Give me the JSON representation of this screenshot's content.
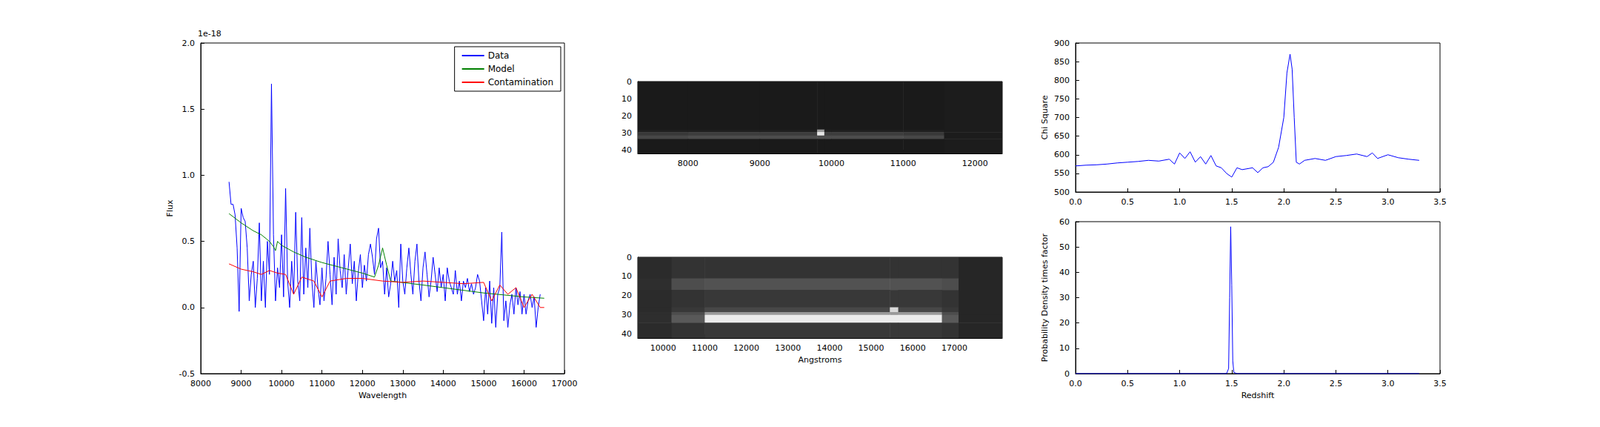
{
  "chart_data": [
    {
      "type": "line",
      "xlabel": "Wavelength",
      "ylabel": "Flux",
      "y_scale_label": "1e-18",
      "xlim": [
        8000,
        17000
      ],
      "xticks": [
        8000,
        9000,
        10000,
        11000,
        12000,
        13000,
        14000,
        15000,
        16000,
        17000
      ],
      "ylim": [
        -0.5,
        2.0
      ],
      "yticks": [
        -0.5,
        {
          "value": 0,
          "label": "0.0"
        },
        0.5,
        {
          "value": 1,
          "label": "1.0"
        },
        1.5,
        {
          "value": 2,
          "label": "2.0"
        }
      ],
      "legend": "upper right",
      "grid": false,
      "series": [
        {
          "name": "Data",
          "color": "#0000ff",
          "x": [
            8700,
            8750,
            8800,
            8850,
            8900,
            8950,
            9000,
            9050,
            9100,
            9150,
            9200,
            9250,
            9300,
            9350,
            9400,
            9450,
            9500,
            9550,
            9600,
            9650,
            9700,
            9750,
            9800,
            9850,
            9900,
            9950,
            10000,
            10050,
            10100,
            10150,
            10200,
            10250,
            10300,
            10350,
            10400,
            10450,
            10500,
            10550,
            10600,
            10650,
            10700,
            10750,
            10800,
            10850,
            10900,
            10950,
            11000,
            11050,
            11100,
            11150,
            11200,
            11250,
            11300,
            11350,
            11400,
            11450,
            11500,
            11550,
            11600,
            11650,
            11700,
            11750,
            11800,
            11850,
            11900,
            11950,
            12000,
            12050,
            12100,
            12150,
            12200,
            12250,
            12300,
            12350,
            12400,
            12450,
            12500,
            12550,
            12600,
            12650,
            12700,
            12750,
            12800,
            12850,
            12900,
            12950,
            13000,
            13050,
            13100,
            13150,
            13200,
            13250,
            13300,
            13350,
            13400,
            13450,
            13500,
            13550,
            13600,
            13650,
            13700,
            13750,
            13800,
            13850,
            13900,
            13950,
            14000,
            14050,
            14100,
            14150,
            14200,
            14250,
            14300,
            14350,
            14400,
            14450,
            14500,
            14550,
            14600,
            14650,
            14700,
            14750,
            14800,
            14850,
            14900,
            14950,
            15000,
            15050,
            15100,
            15150,
            15200,
            15250,
            15300,
            15350,
            15400,
            15450,
            15500,
            15550,
            15600,
            15650,
            15700,
            15750,
            15800,
            15850,
            15900,
            15950,
            16000,
            16050,
            16100,
            16150,
            16200,
            16250,
            16300,
            16350,
            16400
          ],
          "values": [
            0.95,
            0.78,
            0.78,
            0.7,
            0.45,
            -0.03,
            0.75,
            0.68,
            0.65,
            0.45,
            0.05,
            0.25,
            0.35,
            0.0,
            0.22,
            0.64,
            0.05,
            0.35,
            0.0,
            0.5,
            0.25,
            1.69,
            0.55,
            0.05,
            0.3,
            0.15,
            0.55,
            0.08,
            0.9,
            0.2,
            0.0,
            0.35,
            0.1,
            0.72,
            0.2,
            0.05,
            0.68,
            0.1,
            0.45,
            0.15,
            0.6,
            0.2,
            0.0,
            0.35,
            0.15,
            0.02,
            0.3,
            0.05,
            0.22,
            0.5,
            0.25,
            0.02,
            0.38,
            0.1,
            0.52,
            0.28,
            0.15,
            0.4,
            0.1,
            0.3,
            0.48,
            0.18,
            0.35,
            0.05,
            0.27,
            0.4,
            0.15,
            0.32,
            0.2,
            0.4,
            0.48,
            0.38,
            0.25,
            0.52,
            0.6,
            0.3,
            0.35,
            0.1,
            0.3,
            0.08,
            0.18,
            0.35,
            0.2,
            0.28,
            0.0,
            0.48,
            0.2,
            0.1,
            0.3,
            0.45,
            0.25,
            0.1,
            0.35,
            0.48,
            0.2,
            0.05,
            0.3,
            0.42,
            0.25,
            0.08,
            0.2,
            0.38,
            0.25,
            0.12,
            0.3,
            0.15,
            0.25,
            0.05,
            0.3,
            0.2,
            0.15,
            0.1,
            0.28,
            0.1,
            0.2,
            0.05,
            0.2,
            0.15,
            0.22,
            0.12,
            0.18,
            0.1,
            0.15,
            0.25,
            0.2,
            0.05,
            -0.1,
            0.15,
            -0.05,
            0.2,
            -0.12,
            0.15,
            -0.15,
            0.1,
            0.15,
            0.57,
            -0.1,
            0.05,
            -0.15,
            0.02,
            0.1,
            -0.05,
            0.15,
            0.02,
            0.12,
            -0.05,
            0.1,
            -0.05,
            0.05,
            0.1,
            0.0,
            0.08,
            -0.15,
            0.0,
            0.1
          ]
        },
        {
          "name": "Model",
          "color": "#008000",
          "x": [
            8700,
            9000,
            9300,
            9500,
            9700,
            9800,
            9850,
            9900,
            10000,
            10300,
            10600,
            11000,
            11500,
            12000,
            12300,
            12400,
            12500,
            12600,
            12700,
            13500,
            14000,
            15000,
            16000,
            16500
          ],
          "values": [
            0.71,
            0.64,
            0.58,
            0.55,
            0.5,
            0.46,
            0.43,
            0.5,
            0.47,
            0.42,
            0.38,
            0.34,
            0.3,
            0.26,
            0.23,
            0.32,
            0.45,
            0.32,
            0.2,
            0.17,
            0.15,
            0.11,
            0.08,
            0.07
          ]
        },
        {
          "name": "Contamination",
          "color": "#ff0000",
          "x": [
            8700,
            9000,
            9300,
            9500,
            9700,
            9900,
            10100,
            10300,
            10500,
            10800,
            11000,
            11200,
            11600,
            12000,
            12500,
            13000,
            13500,
            14000,
            14500,
            15000,
            15200,
            15400,
            15600,
            15800,
            16000,
            16200,
            16400,
            16500
          ],
          "values": [
            0.33,
            0.29,
            0.27,
            0.25,
            0.28,
            0.26,
            0.25,
            0.1,
            0.23,
            0.2,
            0.08,
            0.2,
            0.22,
            0.22,
            0.2,
            0.19,
            0.2,
            0.19,
            0.18,
            0.19,
            0.05,
            0.17,
            0.1,
            0.15,
            0.0,
            0.1,
            0.0,
            0.0
          ]
        }
      ]
    },
    {
      "type": "image",
      "xlim": [
        7300,
        12380
      ],
      "xticks": [
        8000,
        9000,
        10000,
        11000,
        12000
      ],
      "ylim": [
        42,
        0
      ],
      "yticks": [
        0,
        10,
        20,
        30,
        40
      ],
      "x_edges": [
        7300,
        8000,
        9000,
        9800,
        9900,
        10000,
        11000,
        11570,
        12380
      ],
      "y_edges": [
        0,
        28,
        29.5,
        31.5,
        33.5,
        42
      ],
      "cells": [
        [
          0.1,
          0.1,
          0.1,
          0.1,
          0.1,
          0.1,
          0.1,
          0.11
        ],
        [
          0.12,
          0.12,
          0.12,
          0.6,
          0.12,
          0.12,
          0.12,
          0.11
        ],
        [
          0.22,
          0.24,
          0.24,
          0.9,
          0.24,
          0.24,
          0.22,
          0.11
        ],
        [
          0.28,
          0.3,
          0.3,
          0.3,
          0.3,
          0.3,
          0.28,
          0.11
        ],
        [
          0.1,
          0.1,
          0.1,
          0.1,
          0.1,
          0.1,
          0.1,
          0.11
        ]
      ]
    },
    {
      "type": "image",
      "xlabel": "Angstroms",
      "xlim": [
        9390,
        18150
      ],
      "xticks": [
        10000,
        11000,
        12000,
        13000,
        14000,
        15000,
        16000,
        17000
      ],
      "ylim": [
        42,
        0
      ],
      "yticks": [
        0,
        10,
        20,
        30,
        40
      ],
      "x_edges": [
        9390,
        10200,
        11000,
        15450,
        15650,
        16700,
        17100,
        18150
      ],
      "y_edges": [
        0,
        11,
        17,
        26,
        28.5,
        30,
        34,
        42
      ],
      "cells": [
        [
          0.17,
          0.2,
          0.2,
          0.2,
          0.2,
          0.2,
          0.15
        ],
        [
          0.18,
          0.3,
          0.32,
          0.32,
          0.32,
          0.3,
          0.15
        ],
        [
          0.17,
          0.2,
          0.22,
          0.22,
          0.22,
          0.2,
          0.15
        ],
        [
          0.17,
          0.22,
          0.28,
          0.85,
          0.28,
          0.22,
          0.15
        ],
        [
          0.18,
          0.3,
          0.6,
          0.6,
          0.6,
          0.3,
          0.15
        ],
        [
          0.18,
          0.35,
          0.92,
          0.92,
          0.92,
          0.35,
          0.15
        ],
        [
          0.17,
          0.2,
          0.22,
          0.22,
          0.22,
          0.2,
          0.15
        ]
      ]
    },
    {
      "type": "line",
      "ylabel": "Chi Square",
      "xlim": [
        0,
        3.5
      ],
      "xticks": [
        {
          "value": 0,
          "label": "0.0"
        },
        0.5,
        {
          "value": 1,
          "label": "1.0"
        },
        1.5,
        {
          "value": 2,
          "label": "2.0"
        },
        2.5,
        {
          "value": 3,
          "label": "3.0"
        },
        3.5
      ],
      "ylim": [
        500,
        900
      ],
      "yticks": [
        500,
        550,
        600,
        650,
        700,
        750,
        800,
        850,
        900
      ],
      "series": [
        {
          "color": "#0000ff",
          "x": [
            0,
            0.1,
            0.2,
            0.3,
            0.4,
            0.5,
            0.6,
            0.7,
            0.8,
            0.9,
            0.95,
            1.0,
            1.05,
            1.1,
            1.15,
            1.2,
            1.25,
            1.3,
            1.35,
            1.4,
            1.45,
            1.5,
            1.55,
            1.6,
            1.7,
            1.75,
            1.8,
            1.85,
            1.9,
            1.95,
            2.0,
            2.03,
            2.06,
            2.08,
            2.1,
            2.12,
            2.15,
            2.2,
            2.3,
            2.4,
            2.5,
            2.6,
            2.7,
            2.8,
            2.85,
            2.9,
            3.0,
            3.1,
            3.2,
            3.3
          ],
          "values": [
            570,
            572,
            573,
            575,
            578,
            580,
            582,
            585,
            583,
            588,
            575,
            605,
            590,
            608,
            580,
            595,
            575,
            598,
            570,
            565,
            550,
            540,
            565,
            560,
            565,
            552,
            565,
            568,
            580,
            620,
            700,
            820,
            870,
            830,
            700,
            580,
            575,
            585,
            590,
            585,
            595,
            598,
            602,
            595,
            605,
            590,
            600,
            592,
            588,
            585
          ]
        }
      ]
    },
    {
      "type": "line",
      "xlabel": "Redshift",
      "ylabel": "Probability Density times factor",
      "xlim": [
        0,
        3.5
      ],
      "xticks": [
        {
          "value": 0,
          "label": "0.0"
        },
        0.5,
        {
          "value": 1,
          "label": "1.0"
        },
        1.5,
        {
          "value": 2,
          "label": "2.0"
        },
        2.5,
        {
          "value": 3,
          "label": "3.0"
        },
        3.5
      ],
      "ylim": [
        0,
        60
      ],
      "yticks": [
        0,
        10,
        20,
        30,
        40,
        50,
        60
      ],
      "series": [
        {
          "color": "#0000ff",
          "x": [
            0,
            1.45,
            1.47,
            1.48,
            1.49,
            1.5,
            1.51,
            1.52,
            1.55,
            3.3
          ],
          "values": [
            0,
            0,
            2,
            30,
            58,
            35,
            5,
            0.5,
            0,
            0
          ]
        }
      ]
    }
  ]
}
